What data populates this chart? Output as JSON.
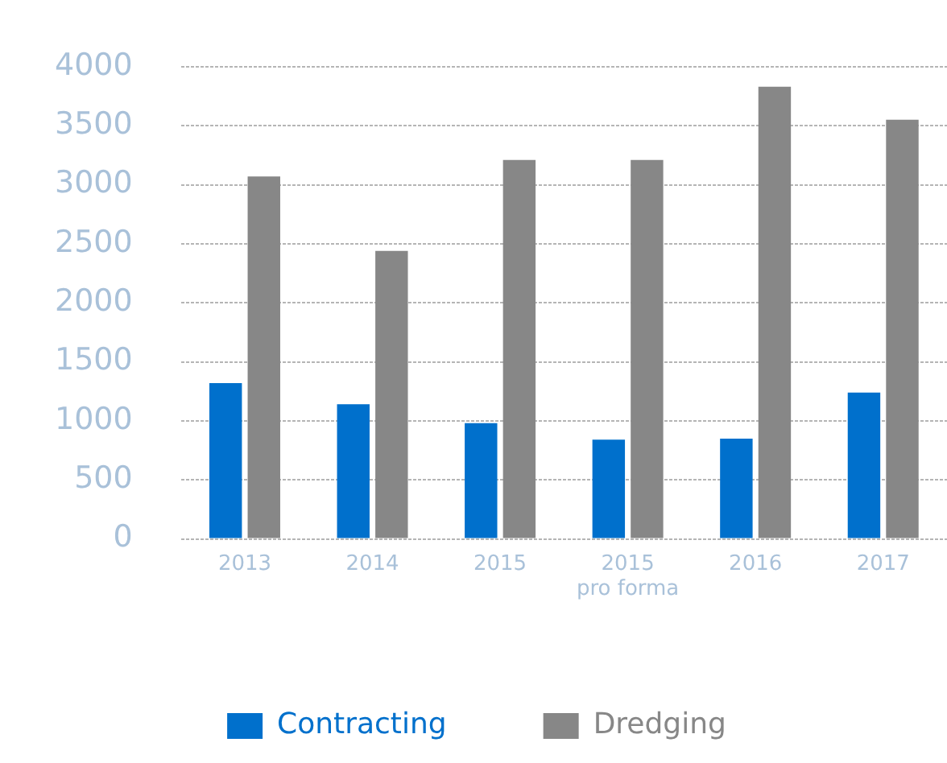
{
  "chart_data": {
    "type": "bar",
    "categories": [
      "2013",
      "2014",
      "2015",
      "2015\npro forma",
      "2016",
      "2017"
    ],
    "series": [
      {
        "name": "Contracting",
        "color": "#0070cc",
        "values": [
          1320,
          1140,
          980,
          840,
          850,
          1240
        ]
      },
      {
        "name": "Dredging",
        "color": "#878787",
        "values": [
          3070,
          2440,
          3210,
          3210,
          3830,
          3550
        ]
      }
    ],
    "ylim": [
      0,
      4000
    ],
    "yticks": [
      0,
      500,
      1000,
      1500,
      2000,
      2500,
      3000,
      3500,
      4000
    ],
    "grid": "y",
    "legend": "bottom"
  }
}
